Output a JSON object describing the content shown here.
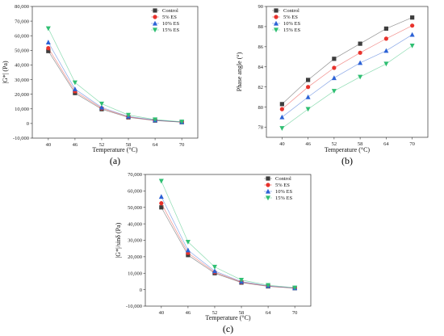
{
  "colors": {
    "control": "#3d3d3d",
    "es5": "#e8322c",
    "es10": "#2c62d6",
    "es15": "#2fbf72"
  },
  "chart_data": [
    {
      "id": "a",
      "panel_label": "(a)",
      "type": "line",
      "xlabel": "Temperature (°C)",
      "ylabel": "|G*| (Pa)",
      "x": [
        40,
        46,
        52,
        58,
        64,
        70
      ],
      "xticks": [
        "40",
        "46",
        "52",
        "58",
        "64",
        "70"
      ],
      "ylim": [
        -10000,
        80000
      ],
      "yticks": [
        -10000,
        0,
        10000,
        20000,
        30000,
        40000,
        50000,
        60000,
        70000,
        80000
      ],
      "ytick_labels": [
        "-10,000",
        "0",
        "10,000",
        "20,000",
        "30,000",
        "40,000",
        "50,000",
        "60,000",
        "70,000",
        "80,000"
      ],
      "legend_position": "top-right",
      "series": [
        {
          "name": "Control",
          "key": "control",
          "marker": "square",
          "values": [
            49500,
            20800,
            9800,
            4200,
            2000,
            900
          ]
        },
        {
          "name": "5% ES",
          "key": "es5",
          "marker": "circle",
          "values": [
            51500,
            22000,
            10400,
            4500,
            2100,
            950
          ]
        },
        {
          "name": "10% ES",
          "key": "es10",
          "marker": "triangle-up",
          "values": [
            55500,
            23500,
            11000,
            4800,
            2300,
            1000
          ]
        },
        {
          "name": "15% ES",
          "key": "es15",
          "marker": "triangle-down",
          "values": [
            65000,
            28000,
            13500,
            5800,
            2700,
            1200
          ]
        }
      ]
    },
    {
      "id": "b",
      "panel_label": "(b)",
      "type": "line",
      "xlabel": "Temperature (°C)",
      "ylabel": "Phase angle (°)",
      "x": [
        40,
        46,
        52,
        58,
        64,
        70
      ],
      "xticks": [
        "40",
        "46",
        "52",
        "58",
        "64",
        "70"
      ],
      "ylim": [
        77,
        90
      ],
      "yticks": [
        78,
        80,
        82,
        84,
        86,
        88,
        90
      ],
      "ytick_labels": [
        "78",
        "80",
        "82",
        "84",
        "86",
        "88",
        "90"
      ],
      "legend_position": "top-left",
      "series": [
        {
          "name": "Control",
          "key": "control",
          "marker": "square",
          "values": [
            80.3,
            82.7,
            84.8,
            86.3,
            87.8,
            88.9
          ]
        },
        {
          "name": "5% ES",
          "key": "es5",
          "marker": "circle",
          "values": [
            79.8,
            82.0,
            83.9,
            85.4,
            86.8,
            88.1
          ]
        },
        {
          "name": "10% ES",
          "key": "es10",
          "marker": "triangle-up",
          "values": [
            79.0,
            81.0,
            82.9,
            84.4,
            85.6,
            87.2
          ]
        },
        {
          "name": "15% ES",
          "key": "es15",
          "marker": "triangle-down",
          "values": [
            77.9,
            79.8,
            81.6,
            83.0,
            84.3,
            86.1
          ]
        }
      ]
    },
    {
      "id": "c",
      "panel_label": "(c)",
      "type": "line",
      "xlabel": "Temperature (°C)",
      "ylabel": "|G*|/sinδ (Pa)",
      "x": [
        40,
        46,
        52,
        58,
        64,
        70
      ],
      "xticks": [
        "40",
        "46",
        "52",
        "58",
        "64",
        "70"
      ],
      "ylim": [
        -10000,
        70000
      ],
      "yticks": [
        -10000,
        0,
        10000,
        20000,
        30000,
        40000,
        50000,
        60000,
        70000
      ],
      "ytick_labels": [
        "-10,000",
        "0",
        "10,000",
        "20,000",
        "30,000",
        "40,000",
        "50,000",
        "60,000",
        "70,000"
      ],
      "legend_position": "top-right",
      "series": [
        {
          "name": "Control",
          "key": "control",
          "marker": "square",
          "values": [
            50000,
            21000,
            10000,
            4300,
            2000,
            900
          ]
        },
        {
          "name": "5% ES",
          "key": "es5",
          "marker": "circle",
          "values": [
            52500,
            22300,
            10600,
            4600,
            2100,
            950
          ]
        },
        {
          "name": "10% ES",
          "key": "es10",
          "marker": "triangle-up",
          "values": [
            56500,
            24000,
            11300,
            4900,
            2300,
            1000
          ]
        },
        {
          "name": "15% ES",
          "key": "es15",
          "marker": "triangle-down",
          "values": [
            66000,
            29000,
            13800,
            5900,
            2700,
            1200
          ]
        }
      ]
    }
  ]
}
